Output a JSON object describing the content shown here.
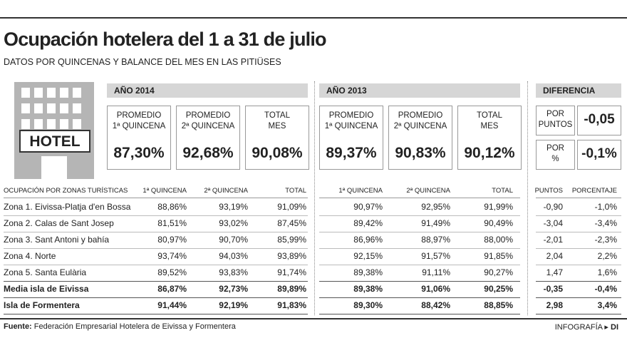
{
  "header": {
    "title": "Ocupación hotelera del 1 a 31 de julio",
    "subtitle": "DATOS POR QUINCENAS Y BALANCE DEL MES EN LAS PITIÜSES"
  },
  "icon": {
    "label": "HOTEL"
  },
  "summary": [
    {
      "title": "AÑO 2014",
      "cells": [
        {
          "label": [
            "PROMEDIO",
            "1ª QUINCENA"
          ],
          "value": "87,30%"
        },
        {
          "label": [
            "PROMEDIO",
            "2ª QUINCENA"
          ],
          "value": "92,68%"
        },
        {
          "label": [
            "TOTAL",
            "MES"
          ],
          "value": "90,08%"
        }
      ]
    },
    {
      "title": "AÑO 2013",
      "cells": [
        {
          "label": [
            "PROMEDIO",
            "1ª QUINCENA"
          ],
          "value": "89,37%"
        },
        {
          "label": [
            "PROMEDIO",
            "2ª QUINCENA"
          ],
          "value": "90,83%"
        },
        {
          "label": [
            "TOTAL",
            "MES"
          ],
          "value": "90,12%"
        }
      ]
    }
  ],
  "difference": {
    "title": "DIFERENCIA",
    "items": [
      {
        "label": [
          "POR",
          "PUNTOS"
        ],
        "value": "-0,05"
      },
      {
        "label": [
          "POR",
          "%"
        ],
        "value": "-0,1%"
      }
    ]
  },
  "table": {
    "headers": [
      "OCUPACIÓN POR ZONAS TURÍSTICAS",
      "1ª QUINCENA",
      "2ª QUINCENA",
      "TOTAL",
      "1ª QUINCENA",
      "2ª QUINCENA",
      "TOTAL",
      "PUNTOS",
      "PORCENTAJE"
    ],
    "rows": [
      [
        "Zona 1. Eivissa-Platja d'en Bossa",
        "88,86%",
        "93,19%",
        "91,09%",
        "90,97%",
        "92,95%",
        "91,99%",
        "-0,90",
        "-1,0%"
      ],
      [
        "Zona 2. Calas de Sant Josep",
        "81,51%",
        "93,02%",
        "87,45%",
        "89,42%",
        "91,49%",
        "90,49%",
        "-3,04",
        "-3,4%"
      ],
      [
        "Zona 3. Sant Antoni y bahía",
        "80,97%",
        "90,70%",
        "85,99%",
        "86,96%",
        "88,97%",
        "88,00%",
        "-2,01",
        "-2,3%"
      ],
      [
        "Zona 4. Norte",
        "93,74%",
        "94,03%",
        "93,89%",
        "92,15%",
        "91,57%",
        "91,85%",
        "2,04",
        "2,2%"
      ],
      [
        "Zona 5. Santa Eulària",
        "89,52%",
        "93,83%",
        "91,74%",
        "89,38%",
        "91,11%",
        "90,27%",
        "1,47",
        "1,6%"
      ],
      [
        "Media isla de Eivissa",
        "86,87%",
        "92,73%",
        "89,89%",
        "89,38%",
        "91,06%",
        "90,25%",
        "-0,35",
        "-0,4%"
      ],
      [
        "Isla de Formentera",
        "91,44%",
        "92,19%",
        "91,83%",
        "89,30%",
        "88,42%",
        "88,85%",
        "2,98",
        "3,4%"
      ]
    ]
  },
  "footer": {
    "source_label": "Fuente:",
    "source": "Federación Empresarial Hotelera de Eivissa y Formentera",
    "credit": "INFOGRAFÍA",
    "credit_mark": "DI"
  }
}
